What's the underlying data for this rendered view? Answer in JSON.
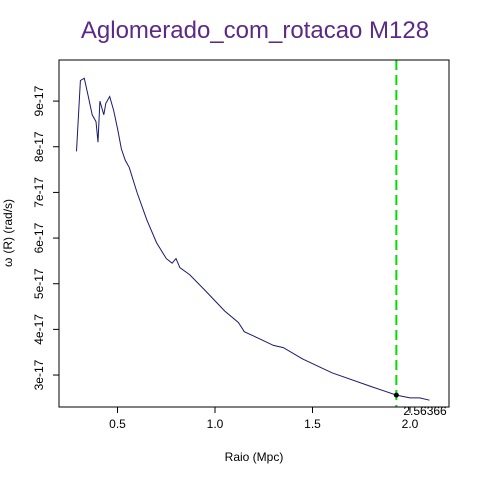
{
  "chart_data": {
    "type": "line",
    "title": "Aglomerado_com_rotacao M128",
    "xlabel": "Raio (Mpc)",
    "ylabel_symbol": "ω",
    "ylabel_rest": "(R) (rad/s)",
    "xlim": [
      0.2,
      2.2
    ],
    "ylim": [
      2.3e-17,
      9.9e-17
    ],
    "x_ticks": [
      0.5,
      1.0,
      1.5,
      2.0
    ],
    "x_tick_labels": [
      "0.5",
      "1.0",
      "1.5",
      "2.0"
    ],
    "y_ticks": [
      3e-17,
      4e-17,
      5e-17,
      6e-17,
      7e-17,
      8e-17,
      9e-17
    ],
    "y_tick_labels": [
      "3e-17",
      "4e-17",
      "5e-17",
      "6e-17",
      "7e-17",
      "8e-17",
      "9e-17"
    ],
    "grid": false,
    "series": [
      {
        "color": "#191970",
        "x": [
          0.29,
          0.31,
          0.33,
          0.35,
          0.37,
          0.39,
          0.4,
          0.41,
          0.43,
          0.44,
          0.46,
          0.48,
          0.5,
          0.52,
          0.54,
          0.56,
          0.6,
          0.65,
          0.7,
          0.75,
          0.78,
          0.8,
          0.82,
          0.87,
          0.95,
          1.05,
          1.12,
          1.15,
          1.2,
          1.3,
          1.35,
          1.45,
          1.6,
          1.8,
          1.93,
          2.0,
          2.05,
          2.1
        ],
        "y": [
          7.9e-17,
          9.45e-17,
          9.5e-17,
          9.1e-17,
          8.7e-17,
          8.55e-17,
          8.1e-17,
          9e-17,
          8.7e-17,
          8.95e-17,
          9.1e-17,
          8.8e-17,
          8.4e-17,
          7.95e-17,
          7.7e-17,
          7.55e-17,
          7e-17,
          6.4e-17,
          5.9e-17,
          5.55e-17,
          5.45e-17,
          5.55e-17,
          5.35e-17,
          5.2e-17,
          4.85e-17,
          4.4e-17,
          4.15e-17,
          3.95e-17,
          3.85e-17,
          3.65e-17,
          3.6e-17,
          3.35e-17,
          3.05e-17,
          2.75e-17,
          2.56e-17,
          2.5e-17,
          2.5e-17,
          2.45e-17
        ]
      }
    ],
    "marker": {
      "x": 1.93,
      "y": 2.56e-17,
      "label": "2.56366",
      "vline_color": "#00dd00",
      "point_color": "#000000"
    },
    "title_color": "#5b2a86"
  }
}
